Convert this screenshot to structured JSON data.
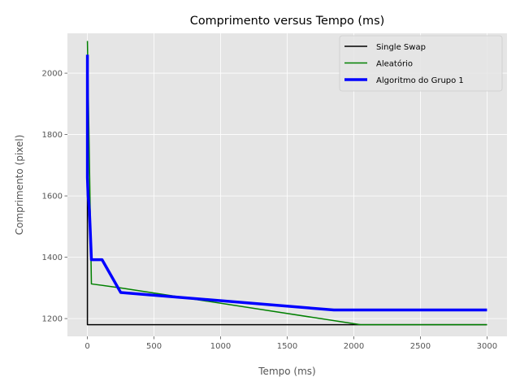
{
  "chart_data": {
    "type": "line",
    "title": "Comprimento versus Tempo (ms)",
    "xlabel": "Tempo (ms)",
    "ylabel": "Comprimento (pixel)",
    "xlim": [
      -150,
      3150
    ],
    "ylim": [
      1142,
      2130
    ],
    "xticks": [
      0,
      500,
      1000,
      1500,
      2000,
      2500,
      3000
    ],
    "yticks": [
      1200,
      1400,
      1600,
      1800,
      2000
    ],
    "grid": true,
    "legend_position": "top-right",
    "colors": {
      "plot_bg": "#e5e5e5",
      "grid": "#ffffff"
    },
    "series": [
      {
        "name": "Single Swap",
        "color": "#000000",
        "x": [
          0,
          0,
          3000
        ],
        "y": [
          2040,
          1180,
          1180
        ]
      },
      {
        "name": "Aleatório",
        "color": "#008000",
        "x": [
          0,
          30,
          250,
          2050,
          3000
        ],
        "y": [
          2105,
          1313,
          1300,
          1180,
          1180
        ]
      },
      {
        "name": "Algoritmo do Grupo 1",
        "color": "#0000ff",
        "x": [
          0,
          0,
          5,
          10,
          15,
          20,
          30,
          110,
          250,
          1850,
          3000
        ],
        "y": [
          2060,
          1660,
          1600,
          1580,
          1550,
          1500,
          1392,
          1392,
          1285,
          1228,
          1228
        ]
      }
    ]
  }
}
